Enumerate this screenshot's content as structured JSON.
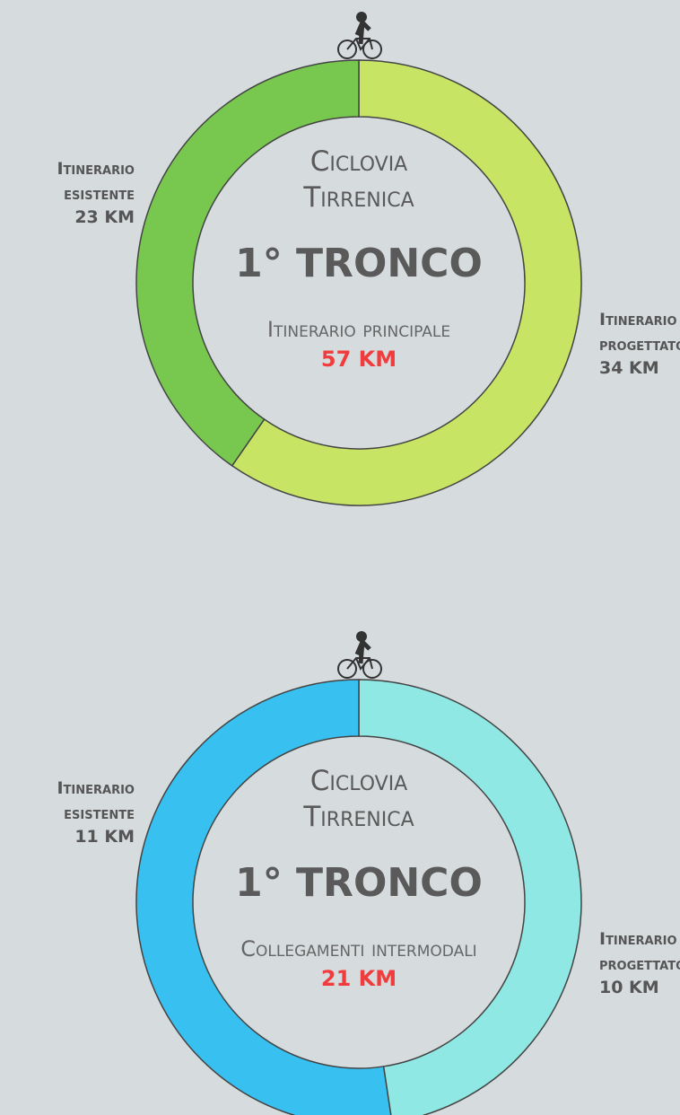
{
  "chart_data": [
    {
      "type": "pie",
      "donut": true,
      "title": "Ciclovia Tirrenica",
      "subtitle": "1° Tronco",
      "caption": "Itinerario principale",
      "total": "57 KM",
      "categories": [
        "Itinerario progettato",
        "Itinerario esistente"
      ],
      "values": [
        34,
        23
      ],
      "value_labels": [
        "34 KM",
        "23 KM"
      ],
      "colors": [
        "#c8e464",
        "#78c850"
      ]
    },
    {
      "type": "pie",
      "donut": true,
      "title": "Ciclovia Tirrenica",
      "subtitle": "1° Tronco",
      "caption": "Collegamenti intermodali",
      "total": "21 KM",
      "categories": [
        "Itinerario progettato",
        "Itinerario esistente"
      ],
      "values": [
        10,
        11
      ],
      "value_labels": [
        "10 KM",
        "11 KM"
      ],
      "colors": [
        "#90e8e4",
        "#38c0f0"
      ]
    }
  ]
}
